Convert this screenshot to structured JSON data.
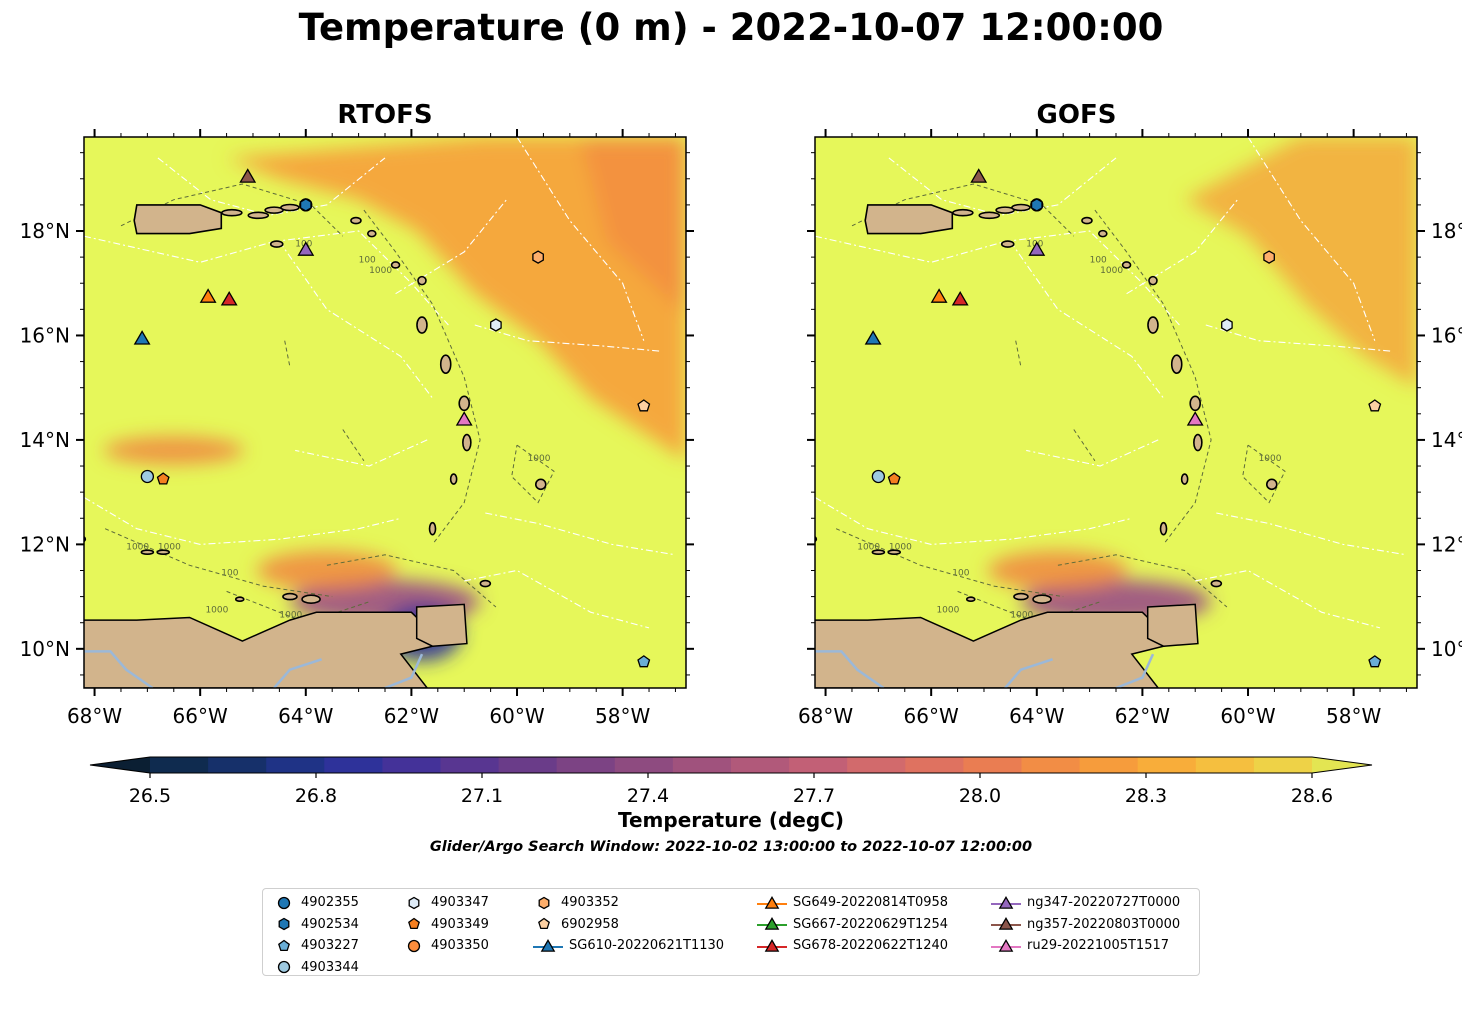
{
  "title": "Temperature (0 m) - 2022-10-07 12:00:00",
  "panels": [
    {
      "title": "RTOFS"
    },
    {
      "title": "GOFS"
    }
  ],
  "axes": {
    "lon_ticks": [
      "68°W",
      "66°W",
      "64°W",
      "62°W",
      "60°W",
      "58°W"
    ],
    "lat_ticks": [
      "10°N",
      "12°N",
      "14°N",
      "16°N",
      "18°N"
    ],
    "lon_range": [
      -68.2,
      -56.8
    ],
    "lat_range": [
      9.25,
      19.8
    ]
  },
  "colorbar": {
    "label": "Temperature (degC)",
    "ticks": [
      "26.5",
      "26.8",
      "27.1",
      "27.4",
      "27.7",
      "28.0",
      "28.3",
      "28.6"
    ],
    "range": [
      26.5,
      28.6
    ],
    "colors": [
      "#0b1f33",
      "#0f2b4f",
      "#16306a",
      "#1f3386",
      "#2e329a",
      "#443299",
      "#583691",
      "#6a3c89",
      "#7c4384",
      "#8e4b80",
      "#a0527d",
      "#b1597a",
      "#c26076",
      "#d26a6c",
      "#df7260",
      "#ea7d52",
      "#f28d45",
      "#f69c3c",
      "#f8ad3a",
      "#f5bf3f",
      "#eed247",
      "#e3e552"
    ]
  },
  "bathymetry_labels": [
    "1000",
    "1000",
    "100",
    "100",
    "1000",
    "1000",
    "1000",
    "100",
    "1000"
  ],
  "search_window": "Glider/Argo Search Window: 2022-10-02 13:00:00 to 2022-10-07 12:00:00",
  "colors": {
    "ocean": "#e6f75a",
    "warm": "#f5a33c",
    "hot": "#f08040",
    "land": "#d2b48c",
    "river": "#9bb8d8"
  },
  "legend": [
    {
      "label": "4902355",
      "marker": "circle",
      "color": "#1f77b4",
      "line": false
    },
    {
      "label": "4902534",
      "marker": "hexagon",
      "color": "#1f77b4",
      "line": false
    },
    {
      "label": "4903227",
      "marker": "pentagon",
      "color": "#6aaed6",
      "line": false
    },
    {
      "label": "4903344",
      "marker": "circle",
      "color": "#9ecae1",
      "line": false
    },
    {
      "label": "4903347",
      "marker": "hexagon",
      "color": "#deebf7",
      "line": false
    },
    {
      "label": "4903349",
      "marker": "pentagon",
      "color": "#f57f20",
      "line": false
    },
    {
      "label": "4903350",
      "marker": "circle",
      "color": "#fd8d3c",
      "line": false
    },
    {
      "label": "4903352",
      "marker": "hexagon",
      "color": "#fdae6b",
      "line": false
    },
    {
      "label": "6902958",
      "marker": "pentagon",
      "color": "#fdd0a2",
      "line": false
    },
    {
      "label": "SG610-20220621T1130",
      "marker": "triangle",
      "color": "#1f77b4",
      "line": true
    },
    {
      "label": "SG649-20220814T0958",
      "marker": "triangle",
      "color": "#ff7f0e",
      "line": true
    },
    {
      "label": "SG667-20220629T1254",
      "marker": "triangle",
      "color": "#2ca02c",
      "line": true
    },
    {
      "label": "SG678-20220622T1240",
      "marker": "triangle",
      "color": "#d62728",
      "line": true
    },
    {
      "label": "ng347-20220727T0000",
      "marker": "triangle",
      "color": "#9467bd",
      "line": true
    },
    {
      "label": "ng357-20220803T0000",
      "marker": "triangle",
      "color": "#8c564b",
      "line": true
    },
    {
      "label": "ru29-20221005T1517",
      "marker": "triangle",
      "color": "#e377c2",
      "line": true
    }
  ],
  "platforms": [
    {
      "name": "4902355",
      "marker": "circle",
      "color": "#1f77b4",
      "lon": -64.0,
      "lat": 18.5
    },
    {
      "name": "4902534",
      "marker": "hexagon",
      "color": "#1f77b4",
      "lon": -64.0,
      "lat": 18.5
    },
    {
      "name": "4903227",
      "marker": "pentagon",
      "color": "#6aaed6",
      "lon": -57.6,
      "lat": 9.75
    },
    {
      "name": "4903344",
      "marker": "circle",
      "color": "#9ecae1",
      "lon": -67.0,
      "lat": 13.3
    },
    {
      "name": "4903347",
      "marker": "hexagon",
      "color": "#deebf7",
      "lon": -60.4,
      "lat": 16.2
    },
    {
      "name": "4903349",
      "marker": "pentagon",
      "color": "#f57f20",
      "lon": -66.7,
      "lat": 13.25
    },
    {
      "name": "4903352",
      "marker": "hexagon",
      "color": "#fdae6b",
      "lon": -59.6,
      "lat": 17.5
    },
    {
      "name": "6902958",
      "marker": "pentagon",
      "color": "#fdd0a2",
      "lon": -57.6,
      "lat": 14.65
    },
    {
      "name": "SG610-20220621T1130",
      "marker": "triangle",
      "color": "#1f77b4",
      "lon": -67.1,
      "lat": 15.95
    },
    {
      "name": "SG649-20220814T0958",
      "marker": "triangle",
      "color": "#ff7f0e",
      "lon": -65.85,
      "lat": 16.75
    },
    {
      "name": "SG678-20220622T1240",
      "marker": "triangle",
      "color": "#d62728",
      "lon": -65.45,
      "lat": 16.7
    },
    {
      "name": "ng347-20220727T0000",
      "marker": "triangle",
      "color": "#9467bd",
      "lon": -64.0,
      "lat": 17.65
    },
    {
      "name": "ng357-20220803T0000",
      "marker": "triangle",
      "color": "#8c564b",
      "lon": -65.1,
      "lat": 19.05
    },
    {
      "name": "ru29-20221005T1517",
      "marker": "triangle",
      "color": "#e377c2",
      "lon": -61.0,
      "lat": 14.4
    }
  ]
}
